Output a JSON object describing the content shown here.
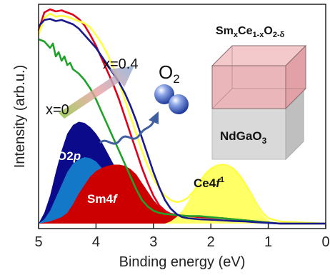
{
  "chart_data": {
    "type": "area",
    "xlabel": "Binding energy (eV)",
    "ylabel": "Intensity (arb.u.)",
    "xlim": [
      5,
      0
    ],
    "x_reversed": true,
    "x_ticks": [
      "5",
      "4",
      "3",
      "2",
      "1",
      "0"
    ],
    "series": [
      {
        "color": "#e0001b",
        "values": [
          [
            5,
            0.9
          ],
          [
            4.9,
            0.985
          ],
          [
            4.8,
            1.0
          ],
          [
            4.7,
            0.99
          ],
          [
            4.6,
            0.995
          ],
          [
            4.5,
            0.985
          ],
          [
            4.4,
            0.975
          ],
          [
            4.3,
            0.955
          ],
          [
            4.2,
            0.925
          ],
          [
            4.1,
            0.88
          ],
          [
            4.0,
            0.83
          ],
          [
            3.9,
            0.77
          ],
          [
            3.8,
            0.71
          ],
          [
            3.7,
            0.65
          ],
          [
            3.6,
            0.58
          ],
          [
            3.5,
            0.5
          ],
          [
            3.4,
            0.42
          ],
          [
            3.3,
            0.34
          ],
          [
            3.2,
            0.26
          ],
          [
            3.1,
            0.19
          ],
          [
            3.0,
            0.13
          ],
          [
            2.9,
            0.085
          ],
          [
            2.8,
            0.06
          ],
          [
            2.7,
            0.045
          ],
          [
            2.6,
            0.04
          ],
          [
            2.4,
            0.035
          ],
          [
            2.2,
            0.03
          ],
          [
            2.0,
            0.028
          ],
          [
            1.8,
            0.025
          ],
          [
            1.6,
            0.02
          ],
          [
            1.4,
            0.015
          ],
          [
            1.2,
            0.01
          ],
          [
            1.0,
            0.005
          ],
          [
            0.8,
            0.0
          ],
          [
            0,
            0.0
          ]
        ]
      },
      {
        "color": "#ffff44",
        "values": [
          [
            5,
            0.88
          ],
          [
            4.9,
            0.96
          ],
          [
            4.8,
            0.98
          ],
          [
            4.7,
            0.965
          ],
          [
            4.6,
            0.97
          ],
          [
            4.5,
            0.965
          ],
          [
            4.4,
            0.955
          ],
          [
            4.3,
            0.945
          ],
          [
            4.2,
            0.935
          ],
          [
            4.1,
            0.915
          ],
          [
            4.0,
            0.88
          ],
          [
            3.9,
            0.84
          ],
          [
            3.8,
            0.79
          ],
          [
            3.7,
            0.73
          ],
          [
            3.6,
            0.66
          ],
          [
            3.5,
            0.58
          ],
          [
            3.4,
            0.5
          ],
          [
            3.3,
            0.42
          ],
          [
            3.2,
            0.34
          ],
          [
            3.1,
            0.27
          ],
          [
            3.0,
            0.21
          ],
          [
            2.9,
            0.165
          ],
          [
            2.8,
            0.13
          ],
          [
            2.7,
            0.11
          ],
          [
            2.6,
            0.1
          ],
          [
            2.5,
            0.105
          ],
          [
            2.4,
            0.12
          ],
          [
            2.3,
            0.15
          ],
          [
            2.2,
            0.19
          ],
          [
            2.1,
            0.23
          ],
          [
            2.0,
            0.255
          ],
          [
            1.9,
            0.27
          ],
          [
            1.8,
            0.275
          ],
          [
            1.7,
            0.27
          ],
          [
            1.6,
            0.255
          ],
          [
            1.5,
            0.225
          ],
          [
            1.4,
            0.185
          ],
          [
            1.3,
            0.14
          ],
          [
            1.2,
            0.09
          ],
          [
            1.1,
            0.05
          ],
          [
            1.0,
            0.025
          ],
          [
            0.8,
            0.01
          ],
          [
            0,
            0.0
          ]
        ]
      },
      {
        "color": "#1fa12a",
        "values": [
          [
            5,
            0.86
          ],
          [
            4.9,
            0.85
          ],
          [
            4.8,
            0.82
          ],
          [
            4.75,
            0.84
          ],
          [
            4.7,
            0.78
          ],
          [
            4.65,
            0.8
          ],
          [
            4.6,
            0.76
          ],
          [
            4.55,
            0.78
          ],
          [
            4.5,
            0.74
          ],
          [
            4.45,
            0.75
          ],
          [
            4.4,
            0.72
          ],
          [
            4.3,
            0.7
          ],
          [
            4.2,
            0.67
          ],
          [
            4.1,
            0.63
          ],
          [
            4.0,
            0.58
          ],
          [
            3.9,
            0.52
          ],
          [
            3.8,
            0.46
          ],
          [
            3.7,
            0.4
          ],
          [
            3.6,
            0.34
          ],
          [
            3.5,
            0.28
          ],
          [
            3.4,
            0.22
          ],
          [
            3.3,
            0.16
          ],
          [
            3.2,
            0.11
          ],
          [
            3.1,
            0.08
          ],
          [
            3.0,
            0.06
          ],
          [
            2.9,
            0.05
          ],
          [
            2.8,
            0.045
          ],
          [
            2.6,
            0.04
          ],
          [
            2.4,
            0.035
          ],
          [
            2.2,
            0.035
          ],
          [
            2.0,
            0.03
          ],
          [
            1.8,
            0.025
          ],
          [
            1.6,
            0.02
          ],
          [
            1.4,
            0.015
          ],
          [
            1.2,
            0.01
          ],
          [
            1.0,
            0.005
          ],
          [
            0.8,
            0.0
          ],
          [
            0,
            0.0
          ]
        ]
      },
      {
        "color": "#1a1a8c",
        "values": [
          [
            5,
            0.92
          ],
          [
            4.9,
            0.95
          ],
          [
            4.8,
            0.955
          ],
          [
            4.7,
            0.945
          ],
          [
            4.6,
            0.95
          ],
          [
            4.5,
            0.94
          ],
          [
            4.4,
            0.93
          ],
          [
            4.3,
            0.91
          ],
          [
            4.2,
            0.88
          ],
          [
            4.1,
            0.85
          ],
          [
            4.0,
            0.82
          ],
          [
            3.9,
            0.78
          ],
          [
            3.8,
            0.74
          ],
          [
            3.7,
            0.7
          ],
          [
            3.6,
            0.66
          ],
          [
            3.5,
            0.61
          ],
          [
            3.4,
            0.55
          ],
          [
            3.3,
            0.48
          ],
          [
            3.2,
            0.4
          ],
          [
            3.1,
            0.32
          ],
          [
            3.0,
            0.24
          ],
          [
            2.9,
            0.17
          ],
          [
            2.8,
            0.11
          ],
          [
            2.7,
            0.07
          ],
          [
            2.6,
            0.045
          ],
          [
            2.5,
            0.03
          ],
          [
            2.4,
            0.025
          ],
          [
            2.2,
            0.02
          ],
          [
            2.0,
            0.018
          ],
          [
            1.8,
            0.015
          ],
          [
            1.6,
            0.012
          ],
          [
            1.4,
            0.01
          ],
          [
            1.2,
            0.006
          ],
          [
            1.0,
            0.003
          ],
          [
            0.8,
            0.0
          ],
          [
            0,
            0.0
          ]
        ]
      }
    ],
    "filled_components": [
      {
        "label": "O2p",
        "color": "#0a0a8a",
        "values": [
          [
            5,
            0.0
          ],
          [
            4.9,
            0.05
          ],
          [
            4.8,
            0.13
          ],
          [
            4.7,
            0.24
          ],
          [
            4.6,
            0.34
          ],
          [
            4.5,
            0.42
          ],
          [
            4.4,
            0.46
          ],
          [
            4.3,
            0.475
          ],
          [
            4.2,
            0.47
          ],
          [
            4.1,
            0.45
          ],
          [
            4.0,
            0.42
          ],
          [
            3.9,
            0.38
          ],
          [
            3.8,
            0.33
          ],
          [
            3.7,
            0.28
          ],
          [
            3.6,
            0.22
          ],
          [
            3.5,
            0.16
          ],
          [
            3.4,
            0.11
          ],
          [
            3.3,
            0.07
          ],
          [
            3.2,
            0.04
          ],
          [
            3.1,
            0.02
          ],
          [
            3.0,
            0.01
          ],
          [
            2.9,
            0.0
          ]
        ]
      },
      {
        "label": "O2p",
        "color": "#1478c8",
        "values": [
          [
            5,
            0.0
          ],
          [
            4.9,
            0.02
          ],
          [
            4.8,
            0.06
          ],
          [
            4.7,
            0.12
          ],
          [
            4.6,
            0.18
          ],
          [
            4.5,
            0.24
          ],
          [
            4.4,
            0.28
          ],
          [
            4.3,
            0.3
          ],
          [
            4.2,
            0.31
          ],
          [
            4.1,
            0.305
          ],
          [
            4.0,
            0.29
          ],
          [
            3.9,
            0.26
          ],
          [
            3.8,
            0.22
          ],
          [
            3.7,
            0.18
          ],
          [
            3.6,
            0.14
          ],
          [
            3.5,
            0.1
          ],
          [
            3.4,
            0.07
          ],
          [
            3.3,
            0.045
          ],
          [
            3.2,
            0.025
          ],
          [
            3.1,
            0.01
          ],
          [
            3.0,
            0.0
          ]
        ]
      },
      {
        "label": "Sm4f",
        "color": "#cc0000",
        "values": [
          [
            5,
            0.0
          ],
          [
            4.8,
            0.01
          ],
          [
            4.6,
            0.03
          ],
          [
            4.5,
            0.05
          ],
          [
            4.4,
            0.09
          ],
          [
            4.3,
            0.14
          ],
          [
            4.2,
            0.18
          ],
          [
            4.1,
            0.22
          ],
          [
            4.0,
            0.245
          ],
          [
            3.9,
            0.26
          ],
          [
            3.8,
            0.27
          ],
          [
            3.7,
            0.275
          ],
          [
            3.6,
            0.275
          ],
          [
            3.5,
            0.27
          ],
          [
            3.4,
            0.255
          ],
          [
            3.3,
            0.23
          ],
          [
            3.2,
            0.19
          ],
          [
            3.1,
            0.15
          ],
          [
            3.0,
            0.11
          ],
          [
            2.9,
            0.08
          ],
          [
            2.8,
            0.06
          ],
          [
            2.7,
            0.05
          ],
          [
            2.6,
            0.045
          ],
          [
            2.5,
            0.04
          ],
          [
            2.4,
            0.04
          ],
          [
            2.2,
            0.038
          ],
          [
            2.0,
            0.035
          ],
          [
            1.8,
            0.03
          ],
          [
            1.6,
            0.022
          ],
          [
            1.4,
            0.012
          ],
          [
            1.2,
            0.005
          ],
          [
            1.0,
            0.0
          ]
        ]
      },
      {
        "label": "Ce4f1",
        "color": "#ffff66",
        "values": [
          [
            2.8,
            0.0
          ],
          [
            2.7,
            0.01
          ],
          [
            2.6,
            0.03
          ],
          [
            2.5,
            0.06
          ],
          [
            2.4,
            0.1
          ],
          [
            2.3,
            0.15
          ],
          [
            2.2,
            0.2
          ],
          [
            2.1,
            0.235
          ],
          [
            2.0,
            0.255
          ],
          [
            1.9,
            0.265
          ],
          [
            1.8,
            0.27
          ],
          [
            1.7,
            0.265
          ],
          [
            1.6,
            0.25
          ],
          [
            1.5,
            0.22
          ],
          [
            1.4,
            0.18
          ],
          [
            1.3,
            0.13
          ],
          [
            1.2,
            0.08
          ],
          [
            1.1,
            0.04
          ],
          [
            1.0,
            0.015
          ],
          [
            0.9,
            0.0
          ]
        ]
      }
    ],
    "annotations": {
      "x0": "x=0",
      "x04": "x=0.4",
      "o2_main": "O",
      "o2_sub": "2",
      "o2p_main": "O2",
      "o2p_ital": "p",
      "sm4f_main": "Sm4",
      "sm4f_ital": "f",
      "ce4f_main": "Ce4",
      "ce4f_ital": "f",
      "ce4f_sup": "1",
      "formula_a": "Sm",
      "formula_b": "x",
      "formula_c": "Ce",
      "formula_d": "1-x",
      "formula_e": "O",
      "formula_f": "2-δ",
      "substrate_main": "NdGaO",
      "substrate_sub": "3"
    }
  }
}
